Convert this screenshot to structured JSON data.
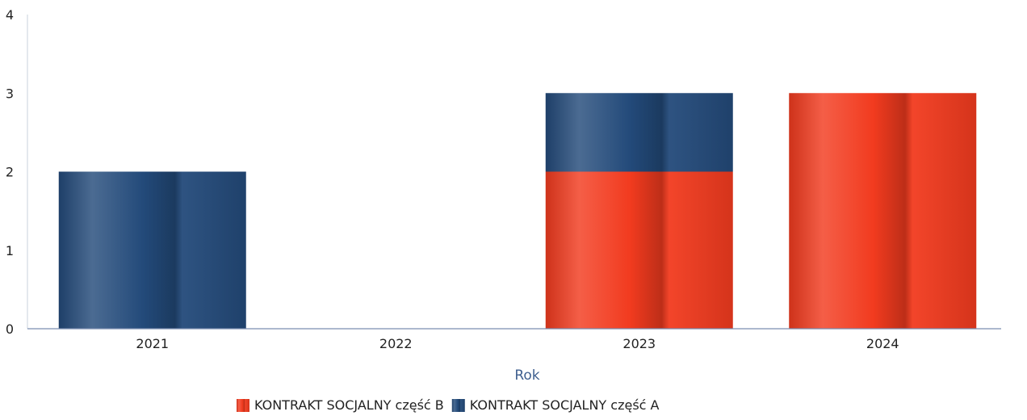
{
  "chart_data": {
    "type": "bar",
    "stacked": true,
    "categories": [
      "2021",
      "2022",
      "2023",
      "2024"
    ],
    "series": [
      {
        "name": "KONTRAKT SOCJALNY część B",
        "values": [
          0,
          0,
          2,
          3
        ],
        "color": "#f23b1f"
      },
      {
        "name": "KONTRAKT SOCJALNY część A",
        "values": [
          2,
          0,
          1,
          0
        ],
        "color": "#234a7a"
      }
    ],
    "xlabel": "Rok",
    "ylabel": "",
    "ylim": [
      0,
      4
    ],
    "yticks": [
      "0",
      "1",
      "2",
      "3",
      "4"
    ],
    "grid": false,
    "legend_position": "bottom-center",
    "legend_order": [
      0,
      1
    ]
  }
}
